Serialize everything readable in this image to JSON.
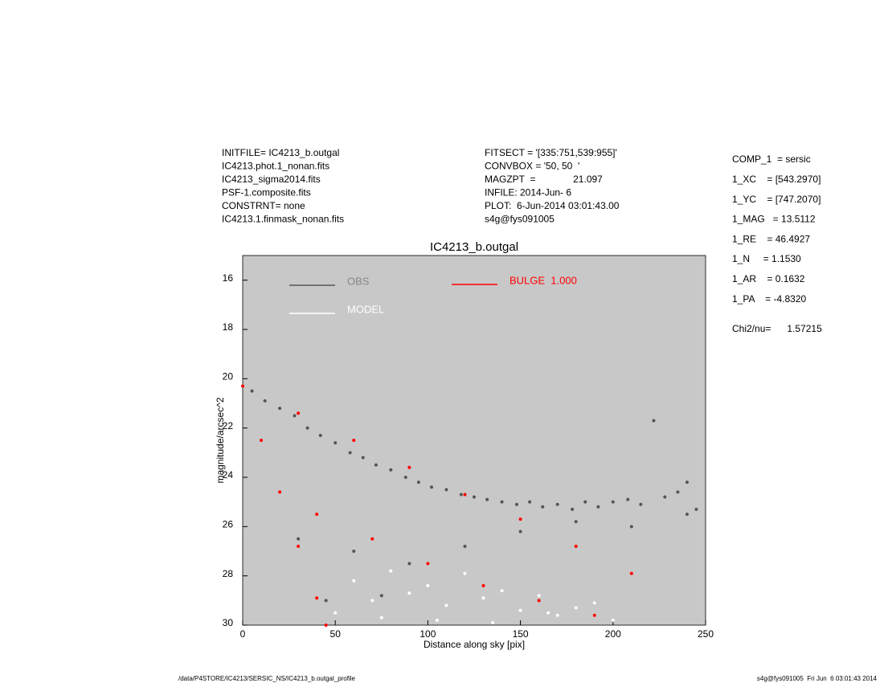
{
  "chart_data": {
    "type": "scatter",
    "title": "IC4213_b.outgal",
    "xlabel": "Distance along sky [pix]",
    "ylabel": "magnitude/arcsec^2",
    "xlim": [
      0,
      250
    ],
    "xticks": [
      0,
      50,
      100,
      150,
      200,
      250
    ],
    "ylim": [
      30,
      15
    ],
    "yticks": [
      16,
      18,
      20,
      22,
      24,
      26,
      28,
      30
    ],
    "background": "#c8c8c8",
    "series": [
      {
        "name": "OBS",
        "color": "#555555",
        "x": [
          5,
          12,
          20,
          28,
          35,
          42,
          50,
          58,
          65,
          72,
          80,
          88,
          95,
          102,
          110,
          118,
          125,
          132,
          140,
          148,
          155,
          162,
          170,
          178,
          185,
          192,
          200,
          208,
          215,
          222,
          228,
          235,
          240,
          245,
          30,
          60,
          90,
          120,
          150,
          180,
          210,
          240,
          45,
          75
        ],
        "values": [
          20.5,
          20.9,
          21.2,
          21.5,
          22.0,
          22.3,
          22.6,
          23.0,
          23.2,
          23.5,
          23.7,
          24.0,
          24.2,
          24.4,
          24.5,
          24.7,
          24.8,
          24.9,
          25.0,
          25.1,
          25.0,
          25.2,
          25.1,
          25.3,
          25.0,
          25.2,
          25.0,
          24.9,
          25.1,
          21.7,
          24.8,
          24.6,
          24.2,
          25.3,
          26.5,
          27.0,
          27.5,
          26.8,
          26.2,
          25.8,
          26.0,
          25.5,
          29.0,
          28.8
        ]
      },
      {
        "name": "MODEL",
        "color": "#ffffff",
        "x": [
          50,
          70,
          90,
          110,
          130,
          150,
          170,
          190,
          60,
          80,
          100,
          120,
          140,
          160,
          180,
          200,
          75,
          105,
          135,
          165
        ],
        "values": [
          29.5,
          29.0,
          28.7,
          29.2,
          28.9,
          29.4,
          29.6,
          29.1,
          28.2,
          27.8,
          28.4,
          27.9,
          28.6,
          28.8,
          29.3,
          29.8,
          29.7,
          29.8,
          29.9,
          29.5
        ]
      },
      {
        "name": "BULGE  1.000",
        "color": "#ff0000",
        "x": [
          0,
          30,
          60,
          90,
          120,
          150,
          180,
          210,
          10,
          20,
          30,
          40,
          45,
          40,
          70,
          100,
          130,
          160,
          190
        ],
        "values": [
          20.3,
          21.4,
          22.5,
          23.6,
          24.7,
          25.7,
          26.8,
          27.9,
          22.5,
          24.6,
          26.8,
          28.9,
          30.0,
          25.5,
          26.5,
          27.5,
          28.4,
          29.0,
          29.6
        ]
      }
    ]
  },
  "header": {
    "left": [
      "INITFILE= IC4213_b.outgal",
      "IC4213.phot.1_nonan.fits",
      "IC4213_sigma2014.fits",
      "PSF-1.composite.fits",
      "CONSTRNT= none",
      "IC4213.1.finmask_nonan.fits"
    ],
    "middle": [
      "FITSECT = '[335:751,539:955]'",
      "CONVBOX = '50, 50  '",
      "MAGZPT  =              21.097",
      "INFILE: 2014-Jun- 6",
      "PLOT:  6-Jun-2014 03:01:43.00",
      "s4g@fys091005"
    ]
  },
  "parameters": [
    "COMP_1  = sersic",
    "1_XC    = [543.2970]",
    "1_YC    = [747.2070]",
    "1_MAG   = 13.5112",
    "1_RE    = 46.4927",
    "1_N     = 1.1530",
    "1_AR    = 0.1632",
    "1_PA    = -4.8320"
  ],
  "fit": "Chi2/nu=      1.57215",
  "footer": {
    "left": "/data/P4STORE/IC4213/SERSIC_NS/IC4213_b.outgal_profile",
    "right": "s4g@fys091005  Fri Jun  6 03:01:43 2014"
  }
}
